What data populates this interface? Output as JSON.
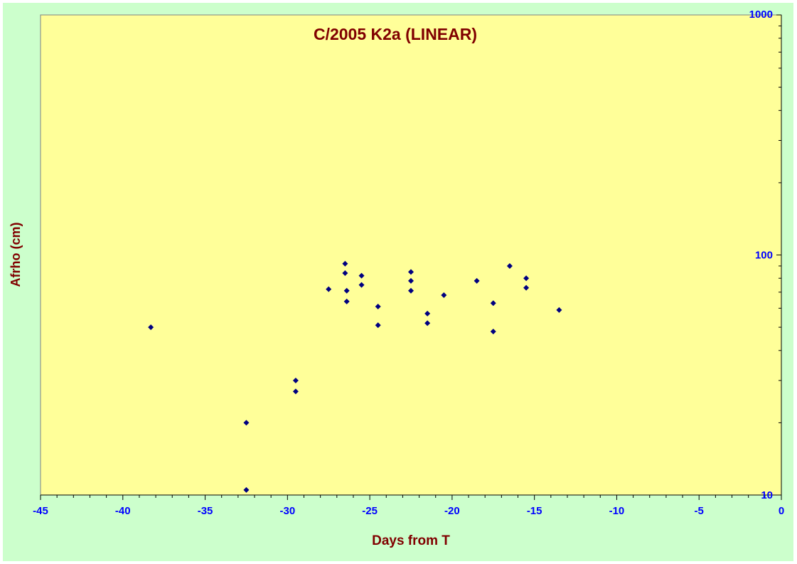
{
  "colors": {
    "frame_bg": "#ccffcc",
    "plot_bg": "#ffff99",
    "title": "#800000",
    "axis_label": "#800000",
    "tick_label": "#0000ff",
    "marker": "#000080"
  },
  "chart_data": {
    "type": "scatter",
    "title": "C/2005 K2a (LINEAR)",
    "xlabel": "Days from T",
    "ylabel": "Afrho (cm)",
    "xlim": [
      -45,
      0
    ],
    "ylim": [
      10,
      1000
    ],
    "yscale": "log",
    "y_axis_side": "right",
    "grid": false,
    "legend": "none",
    "x_ticks": [
      -45,
      -40,
      -35,
      -30,
      -25,
      -20,
      -15,
      -10,
      -5,
      0
    ],
    "x_tick_labels": [
      "-45",
      "-40",
      "-35",
      "-30",
      "-25",
      "-20",
      "-15",
      "-10",
      "-5",
      "0"
    ],
    "y_ticks": [
      10,
      100,
      1000
    ],
    "y_tick_labels": [
      "10",
      "100",
      "1000"
    ],
    "series": [
      {
        "marker": "diamond",
        "points": [
          [
            -38.3,
            50
          ],
          [
            -32.5,
            20
          ],
          [
            -32.5,
            10.5
          ],
          [
            -29.5,
            30
          ],
          [
            -29.5,
            27
          ],
          [
            -27.5,
            72
          ],
          [
            -26.5,
            92
          ],
          [
            -26.5,
            84
          ],
          [
            -26.4,
            71
          ],
          [
            -26.4,
            64
          ],
          [
            -25.5,
            82
          ],
          [
            -25.5,
            75
          ],
          [
            -24.5,
            61
          ],
          [
            -24.5,
            51
          ],
          [
            -22.5,
            85
          ],
          [
            -22.5,
            78
          ],
          [
            -22.5,
            71
          ],
          [
            -21.5,
            57
          ],
          [
            -21.5,
            52
          ],
          [
            -20.5,
            68
          ],
          [
            -18.5,
            78
          ],
          [
            -17.5,
            63
          ],
          [
            -17.5,
            48
          ],
          [
            -16.5,
            90
          ],
          [
            -15.5,
            80
          ],
          [
            -15.5,
            73
          ],
          [
            -13.5,
            59
          ]
        ]
      }
    ]
  }
}
